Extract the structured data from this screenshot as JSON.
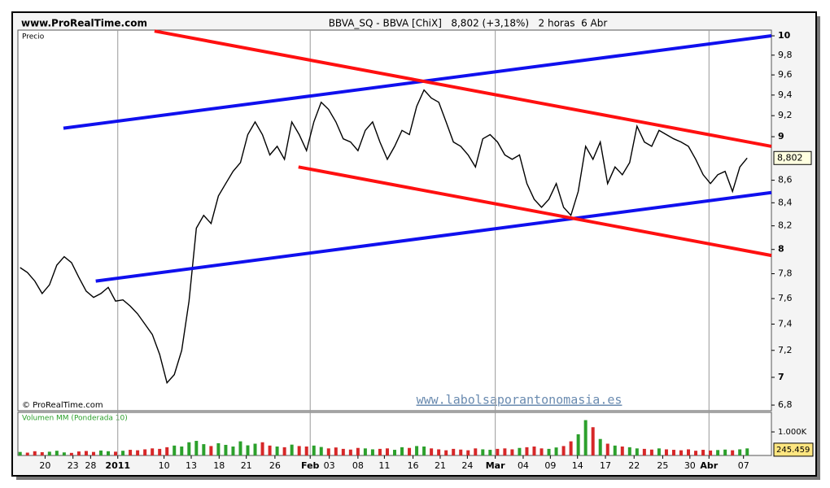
{
  "header": {
    "site": "www.ProRealTime.com",
    "instrument": "BBVA_SQ - BBVA [ChiX]   8,802 (+3,18%)   2 horas  6 Abr"
  },
  "chart_data": [
    {
      "type": "line",
      "label": "Precio",
      "log_scale": true,
      "color": "#000000",
      "watermark": "© ProRealTime.com",
      "source": "www.labolsaporantonomasia.es",
      "xlim": [
        -0.3,
        102.3
      ],
      "ylim": [
        6.76,
        10.06
      ],
      "yticks": [
        {
          "value": 6.8,
          "label": "6,8"
        },
        7,
        {
          "value": 7.2,
          "label": "7,2"
        },
        {
          "value": 7.4,
          "label": "7,4"
        },
        {
          "value": 7.6,
          "label": "7,6"
        },
        {
          "value": 7.8,
          "label": "7,8"
        },
        8,
        {
          "value": 8.2,
          "label": "8,2"
        },
        {
          "value": 8.4,
          "label": "8,4"
        },
        {
          "value": 8.6,
          "label": "8,6"
        },
        9,
        {
          "value": 9.2,
          "label": "9,2"
        },
        {
          "value": 9.4,
          "label": "9,4"
        },
        {
          "value": 9.6,
          "label": "9,6"
        },
        {
          "value": 9.8,
          "label": "9,8"
        },
        10
      ],
      "xticks": [
        {
          "value": 3.4,
          "label": "20"
        },
        {
          "value": 7.2,
          "label": "23"
        },
        {
          "value": 9.6,
          "label": "28"
        },
        {
          "value": 13.3,
          "label": "2011"
        },
        {
          "value": 19.6,
          "label": "10"
        },
        {
          "value": 23.3,
          "label": "13"
        },
        {
          "value": 27.1,
          "label": "18"
        },
        {
          "value": 30.8,
          "label": "21"
        },
        {
          "value": 34.7,
          "label": "26"
        },
        {
          "value": 39.5,
          "label": "Feb"
        },
        {
          "value": 42.1,
          "label": "03"
        },
        {
          "value": 46.0,
          "label": "08"
        },
        {
          "value": 49.6,
          "label": "11"
        },
        {
          "value": 53.5,
          "label": "16"
        },
        {
          "value": 57.2,
          "label": "21"
        },
        {
          "value": 60.9,
          "label": "24"
        },
        {
          "value": 64.7,
          "label": "Mar"
        },
        {
          "value": 68.5,
          "label": "04"
        },
        {
          "value": 72.2,
          "label": "09"
        },
        {
          "value": 75.9,
          "label": "14"
        },
        {
          "value": 79.7,
          "label": "17"
        },
        {
          "value": 83.6,
          "label": "22"
        },
        {
          "value": 87.5,
          "label": "25"
        },
        {
          "value": 91.2,
          "label": "30"
        },
        {
          "value": 93.8,
          "label": "Abr"
        },
        {
          "value": 98.5,
          "label": "07"
        }
      ],
      "values": [
        7.85,
        7.81,
        7.74,
        7.64,
        7.71,
        7.87,
        7.94,
        7.89,
        7.77,
        7.66,
        7.61,
        7.64,
        7.69,
        7.58,
        7.59,
        7.54,
        7.48,
        7.4,
        7.32,
        7.17,
        6.96,
        7.02,
        7.2,
        7.58,
        8.18,
        8.29,
        8.22,
        8.46,
        8.57,
        8.68,
        8.76,
        9.02,
        9.14,
        9.02,
        8.83,
        8.91,
        8.79,
        9.14,
        9.02,
        8.87,
        9.14,
        9.33,
        9.26,
        9.14,
        8.98,
        8.95,
        8.87,
        9.06,
        9.14,
        8.95,
        8.79,
        8.91,
        9.06,
        9.02,
        9.29,
        9.45,
        9.37,
        9.33,
        9.14,
        8.95,
        8.91,
        8.83,
        8.72,
        8.98,
        9.02,
        8.95,
        8.83,
        8.79,
        8.83,
        8.57,
        8.43,
        8.36,
        8.43,
        8.57,
        8.36,
        8.29,
        8.5,
        8.91,
        8.79,
        8.95,
        8.57,
        8.72,
        8.65,
        8.76,
        9.1,
        8.95,
        8.91,
        9.06,
        9.02,
        8.98,
        8.95,
        8.91,
        8.79,
        8.65,
        8.57,
        8.65,
        8.68,
        8.5,
        8.72,
        8.802
      ],
      "last_label": "8,802",
      "trendlines": [
        {
          "color": "#1010ee",
          "x": [
            5.9,
            102.3
          ],
          "y": [
            9.08,
            10.0
          ]
        },
        {
          "color": "#1010ee",
          "x": [
            10.3,
            102.3
          ],
          "y": [
            7.74,
            8.49
          ]
        },
        {
          "color": "#ff1010",
          "x": [
            18.3,
            102.3
          ],
          "y": [
            10.05,
            8.91
          ]
        },
        {
          "color": "#ff1010",
          "x": [
            37.9,
            102.3
          ],
          "y": [
            8.72,
            7.95
          ]
        }
      ]
    },
    {
      "type": "bar",
      "label": "Volumen MM (Ponderada 10)",
      "up_color": "#2ca02c",
      "down_color": "#d62728",
      "xlim": [
        -0.3,
        102.3
      ],
      "ylim": [
        0,
        1830
      ],
      "yticks": [
        {
          "value": 1000,
          "label": "1.000K"
        }
      ],
      "values": [
        150,
        120,
        180,
        140,
        160,
        200,
        130,
        110,
        170,
        190,
        150,
        210,
        180,
        160,
        200,
        240,
        220,
        260,
        300,
        280,
        350,
        420,
        380,
        560,
        620,
        480,
        400,
        520,
        450,
        380,
        600,
        430,
        500,
        560,
        420,
        380,
        350,
        460,
        400,
        380,
        420,
        360,
        300,
        340,
        280,
        250,
        320,
        300,
        260,
        280,
        300,
        240,
        350,
        320,
        400,
        380,
        300,
        260,
        220,
        280,
        250,
        220,
        300,
        260,
        240,
        280,
        300,
        260,
        320,
        350,
        380,
        300,
        280,
        340,
        400,
        600,
        900,
        1500,
        1200,
        700,
        500,
        420,
        380,
        350,
        300,
        280,
        250,
        300,
        260,
        240,
        220,
        260,
        200,
        240,
        210,
        230,
        250,
        220,
        260,
        300
      ],
      "last_value": 245.459
    }
  ]
}
